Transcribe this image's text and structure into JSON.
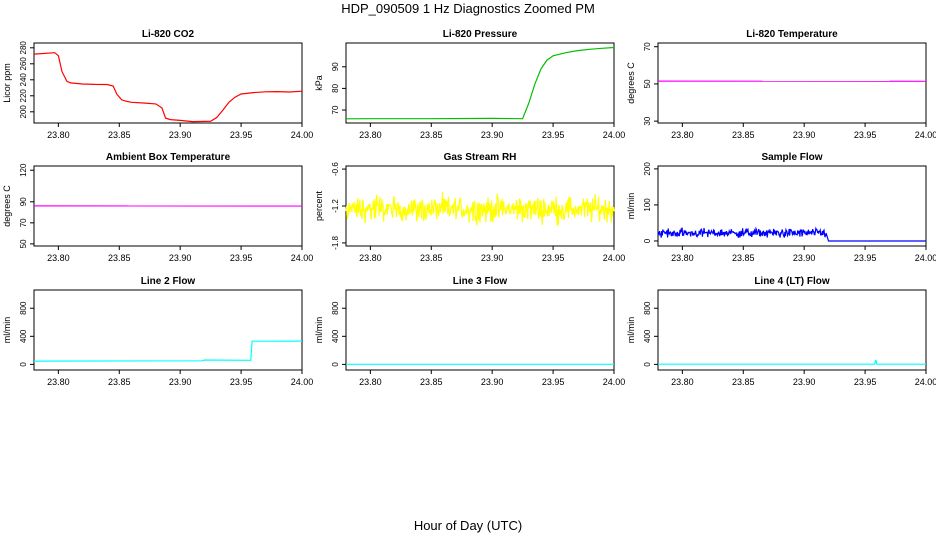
{
  "title": "HDP_090509  1 Hz Diagnostics Zoomed PM",
  "xlabel": "Hour of Day (UTC)",
  "chart_data": [
    {
      "type": "line",
      "title": "Li-820 CO2",
      "ylabel": "Licor ppm",
      "color": "#ff0000",
      "xlim": [
        23.78,
        24.0
      ],
      "ylim": [
        186,
        286
      ],
      "yticks": [
        "200",
        "220",
        "240",
        "260",
        "280"
      ],
      "xticks": [
        "23.80",
        "23.85",
        "23.90",
        "23.95",
        "24.00"
      ],
      "series": [
        {
          "name": "CO2",
          "x": [
            23.78,
            23.797,
            23.8,
            23.803,
            23.807,
            23.81,
            23.82,
            23.83,
            23.84,
            23.845,
            23.848,
            23.852,
            23.856,
            23.86,
            23.87,
            23.88,
            23.885,
            23.888,
            23.892,
            23.9,
            23.91,
            23.92,
            23.925,
            23.93,
            23.935,
            23.94,
            23.945,
            23.95,
            23.96,
            23.97,
            23.98,
            23.99,
            24.0
          ],
          "y": [
            272,
            274,
            270,
            250,
            238,
            236,
            235,
            234,
            234,
            232,
            222,
            215,
            213,
            212,
            211,
            210,
            205,
            192,
            190,
            189,
            188,
            188,
            188,
            193,
            202,
            212,
            218,
            222,
            224,
            225,
            225,
            225,
            226
          ]
        }
      ]
    },
    {
      "type": "line",
      "title": "Li-820 Pressure",
      "ylabel": "kPa",
      "color": "#00c000",
      "xlim": [
        23.78,
        24.0
      ],
      "ylim": [
        64,
        101
      ],
      "yticks": [
        "70",
        "80",
        "90"
      ],
      "xticks": [
        "23.80",
        "23.85",
        "23.90",
        "23.95",
        "24.00"
      ],
      "series": [
        {
          "name": "Pressure",
          "x": [
            23.78,
            23.8,
            23.85,
            23.9,
            23.925,
            23.93,
            23.935,
            23.94,
            23.945,
            23.95,
            23.96,
            23.97,
            23.98,
            23.99,
            24.0
          ],
          "y": [
            66,
            66,
            66,
            66,
            66,
            73,
            82,
            89,
            93,
            95,
            96.5,
            97.5,
            98,
            98.5,
            99
          ]
        }
      ]
    },
    {
      "type": "line",
      "title": "Li-820 Temperature",
      "ylabel": "degrees C",
      "color": "#ff00ff",
      "xlim": [
        23.78,
        24.0
      ],
      "ylim": [
        29,
        72
      ],
      "yticks": [
        "30",
        "50",
        "70"
      ],
      "xticks": [
        "23.80",
        "23.85",
        "23.90",
        "23.95",
        "24.00"
      ],
      "series": [
        {
          "name": "Temperature",
          "x": [
            23.78,
            24.0
          ],
          "y": [
            51.5,
            51.5
          ]
        }
      ]
    },
    {
      "type": "line",
      "title": "Ambient Box Temperature",
      "ylabel": "degrees C",
      "color": "#ff00ff",
      "xlim": [
        23.78,
        24.0
      ],
      "ylim": [
        48,
        124
      ],
      "yticks": [
        "50",
        "70",
        "90",
        "120"
      ],
      "xticks": [
        "23.80",
        "23.85",
        "23.90",
        "23.95",
        "24.00"
      ],
      "series": [
        {
          "name": "Box Temperature",
          "x": [
            23.78,
            24.0
          ],
          "y": [
            86,
            86
          ]
        }
      ]
    },
    {
      "type": "line",
      "title": "Gas Stream RH",
      "ylabel": "percent",
      "color": "#ffff00",
      "xlim": [
        23.78,
        24.0
      ],
      "ylim": [
        -1.85,
        -0.55
      ],
      "yticks": [
        "-1.8",
        "-1.2",
        "-0.6"
      ],
      "xticks": [
        "23.80",
        "23.85",
        "23.90",
        "23.95",
        "24.00"
      ],
      "series": [
        {
          "name": "RH",
          "noise": {
            "from": 23.78,
            "to": 24.0,
            "mean": -1.25,
            "amp": 0.3
          }
        }
      ]
    },
    {
      "type": "line",
      "title": "Sample Flow",
      "ylabel": "ml/min",
      "color": "#0000ff",
      "xlim": [
        23.78,
        24.0
      ],
      "ylim": [
        -14,
        208
      ],
      "yticks": [
        "0",
        "100",
        "200"
      ],
      "xticks": [
        "23.80",
        "23.85",
        "23.90",
        "23.95",
        "24.00"
      ],
      "series": [
        {
          "name": "Sample Flow",
          "noise": {
            "from": 23.78,
            "to": 23.918,
            "mean": 22,
            "amp": 18
          },
          "x": [
            23.918,
            23.92,
            24.0
          ],
          "y": [
            22,
            0,
            0
          ]
        }
      ]
    },
    {
      "type": "line",
      "title": "Line 2 Flow",
      "ylabel": "ml/min",
      "color": "#00ffff",
      "xlim": [
        23.78,
        24.0
      ],
      "ylim": [
        -80,
        1060
      ],
      "yticks": [
        "0",
        "400",
        "800"
      ],
      "xticks": [
        "23.80",
        "23.85",
        "23.90",
        "23.95",
        "24.00"
      ],
      "series": [
        {
          "name": "Line 2 Flow",
          "x": [
            23.78,
            23.918,
            23.92,
            23.958,
            23.959,
            24.0
          ],
          "y": [
            50,
            50,
            60,
            60,
            330,
            335
          ]
        }
      ]
    },
    {
      "type": "line",
      "title": "Line 3 Flow",
      "ylabel": "ml/min",
      "color": "#00ffff",
      "xlim": [
        23.78,
        24.0
      ],
      "ylim": [
        -80,
        1060
      ],
      "yticks": [
        "0",
        "400",
        "800"
      ],
      "xticks": [
        "23.80",
        "23.85",
        "23.90",
        "23.95",
        "24.00"
      ],
      "series": [
        {
          "name": "Line 3 Flow",
          "x": [
            23.78,
            24.0
          ],
          "y": [
            0,
            0
          ]
        }
      ]
    },
    {
      "type": "line",
      "title": "Line 4 (LT) Flow",
      "ylabel": "ml/min",
      "color": "#00ffff",
      "xlim": [
        23.78,
        24.0
      ],
      "ylim": [
        -80,
        1060
      ],
      "yticks": [
        "0",
        "400",
        "800"
      ],
      "xticks": [
        "23.80",
        "23.85",
        "23.90",
        "23.95",
        "24.00"
      ],
      "series": [
        {
          "name": "Line 4 Flow",
          "x": [
            23.78,
            23.958,
            23.9585,
            23.959,
            23.9595,
            24.0
          ],
          "y": [
            0,
            0,
            55,
            55,
            0,
            0
          ]
        }
      ]
    }
  ]
}
